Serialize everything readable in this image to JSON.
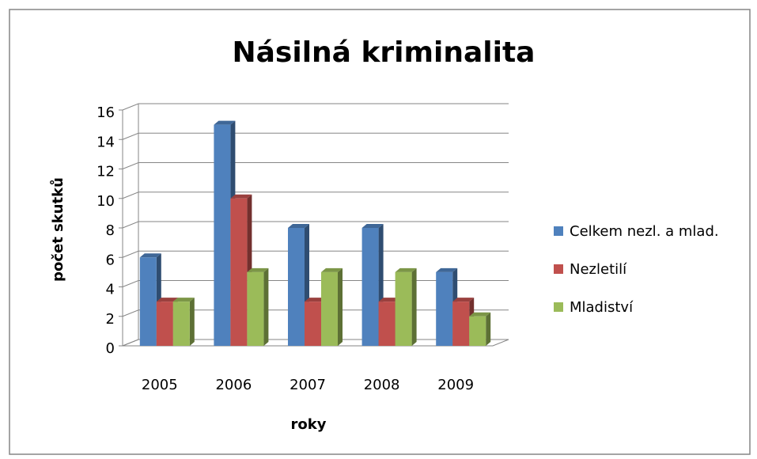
{
  "chart_data": {
    "type": "bar3d",
    "title": "Násilná kriminalita",
    "xlabel": "roky",
    "ylabel": "počet skutků",
    "categories": [
      "2005",
      "2006",
      "2007",
      "2008",
      "2009"
    ],
    "series": [
      {
        "name": "Celkem nezl. a mlad.",
        "color": "#4f81bd",
        "values": [
          6,
          15,
          8,
          8,
          5
        ]
      },
      {
        "name": "Nezletilí",
        "color": "#c0504d",
        "values": [
          3,
          10,
          3,
          3,
          3
        ]
      },
      {
        "name": "Mladiství",
        "color": "#9bbb59",
        "values": [
          3,
          5,
          5,
          5,
          2
        ]
      }
    ],
    "ylim": [
      0,
      16
    ],
    "yticks": [
      0,
      2,
      4,
      6,
      8,
      10,
      12,
      14,
      16
    ],
    "grid": true,
    "legend": "right"
  }
}
